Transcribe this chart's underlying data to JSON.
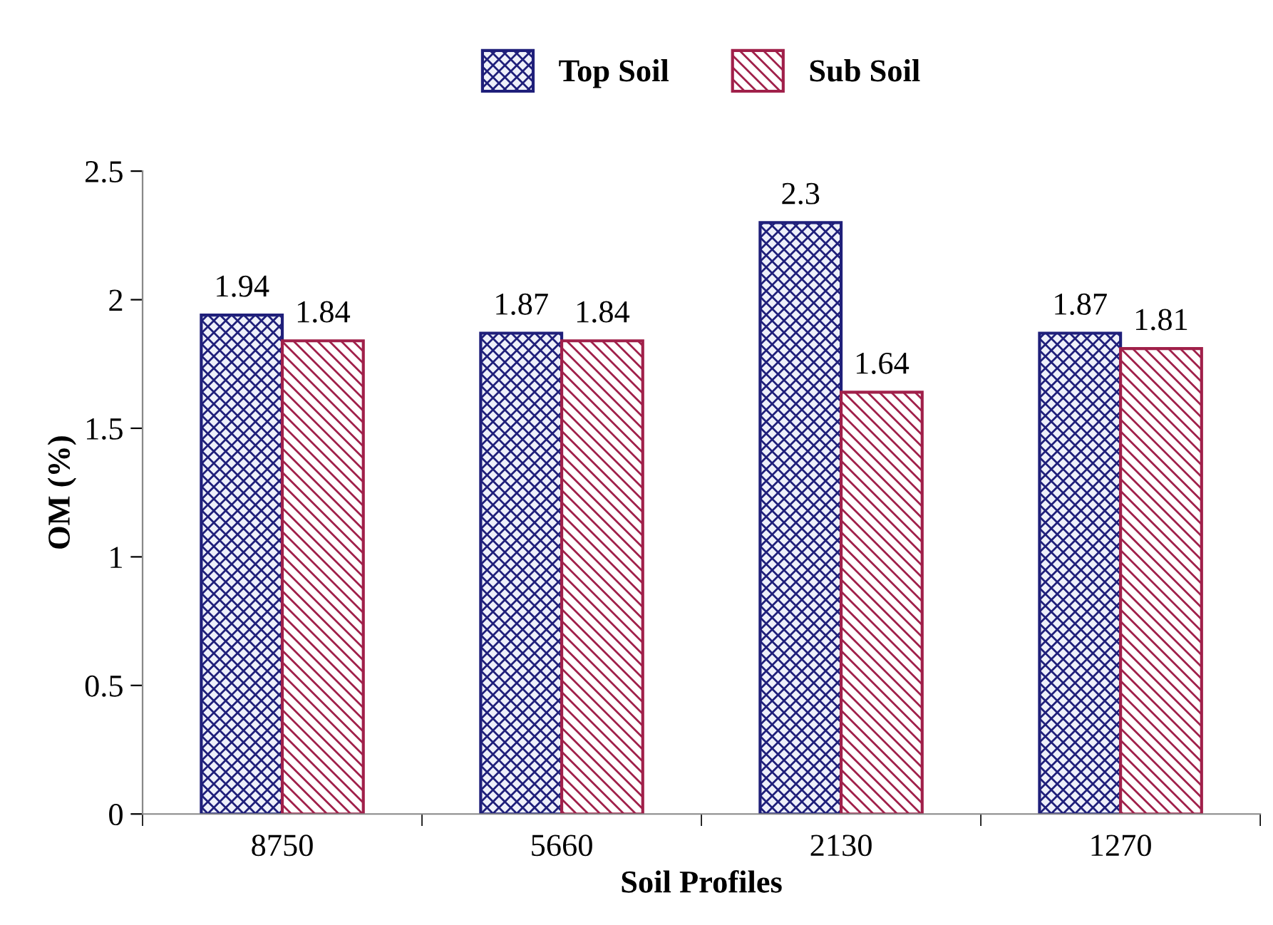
{
  "chart_data": {
    "type": "bar",
    "xlabel": "Soil Profiles",
    "ylabel": "OM (%)",
    "categories": [
      "8750",
      "5660",
      "2130",
      "1270"
    ],
    "series": [
      {
        "name": "Top Soil",
        "color": "#1f1f7a",
        "values": [
          1.94,
          1.87,
          2.3,
          1.87
        ]
      },
      {
        "name": "Sub Soil",
        "color": "#a0204a",
        "values": [
          1.84,
          1.84,
          1.64,
          1.81
        ]
      }
    ],
    "ylim": [
      0,
      2.5
    ],
    "yticks": [
      0,
      0.5,
      1,
      1.5,
      2,
      2.5
    ],
    "grid": false,
    "legend": "top",
    "data_labels": true
  }
}
